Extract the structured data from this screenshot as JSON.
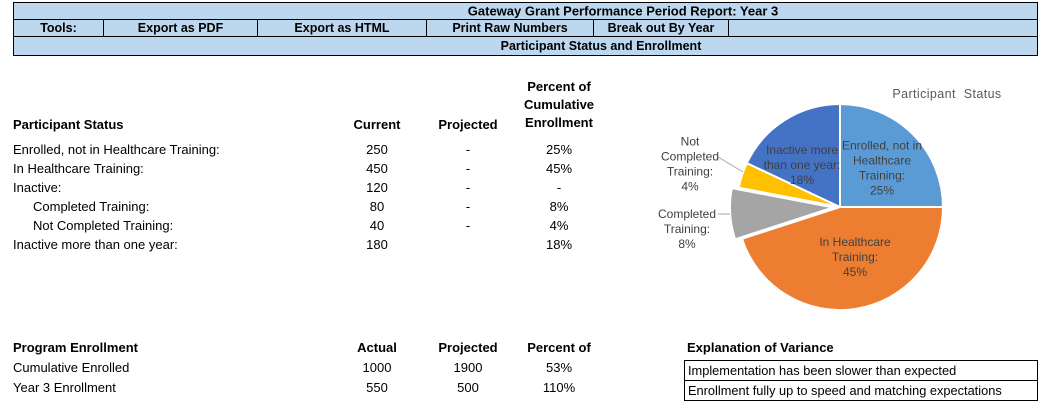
{
  "report_header": {
    "title": "Gateway Grant Performance Period Report: Year 3",
    "tools_label": "Tools:",
    "tool_buttons": [
      "Export as PDF",
      "Export as HTML",
      "Print Raw Numbers",
      "Break out By Year"
    ],
    "section_title": "Participant Status and Enrollment",
    "fill_color": "#BDD7EE",
    "border_color": "#000000"
  },
  "participant_status": {
    "title": "Participant Status",
    "col_current": "Current",
    "col_projected": "Projected",
    "col_percent_lines": [
      "Percent of",
      "Cumulative",
      "Enrollment"
    ],
    "rows": [
      {
        "label": "Enrolled, not in Healthcare Training:",
        "indent": false,
        "current": "250",
        "projected": "-",
        "percent": "25%"
      },
      {
        "label": "In Healthcare Training:",
        "indent": false,
        "current": "450",
        "projected": "-",
        "percent": "45%"
      },
      {
        "label": "Inactive:",
        "indent": false,
        "current": "120",
        "projected": "-",
        "percent": "-"
      },
      {
        "label": "Completed Training:",
        "indent": true,
        "current": "80",
        "projected": "-",
        "percent": "8%"
      },
      {
        "label": "Not Completed Training:",
        "indent": true,
        "current": "40",
        "projected": "-",
        "percent": "4%"
      },
      {
        "label": "Inactive more than one year:",
        "indent": false,
        "current": "180",
        "projected": "",
        "percent": "18%"
      }
    ]
  },
  "program_enrollment": {
    "title": "Program Enrollment",
    "col_actual": "Actual",
    "col_projected": "Projected",
    "col_percent": "Percent of",
    "rows": [
      {
        "label": "Cumulative Enrolled",
        "actual": "1000",
        "projected": "1900",
        "percent": "53%"
      },
      {
        "label": "Year 3 Enrollment",
        "actual": "550",
        "projected": "500",
        "percent": "110%"
      }
    ]
  },
  "variance": {
    "title": "Explanation of Variance",
    "entries": [
      "Implementation has been slower than expected",
      "Enrollment fully up to speed and matching expectations"
    ]
  },
  "chart_data": {
    "type": "pie",
    "title": "Participant Status",
    "start_angle_deg": 0,
    "direction": "clockwise",
    "title_color": "#595959",
    "label_color": "#404040",
    "leader_color": "#A6A6A6",
    "slices": [
      {
        "name": "Enrolled, not in Healthcare Training",
        "value_pct": 25,
        "color": "#5B9BD5",
        "label_lines": [
          "Enrolled, not in",
          "Healthcare",
          "Training:",
          "25%"
        ],
        "label_placement": "inside",
        "exploded": false
      },
      {
        "name": "In Healthcare Training",
        "value_pct": 45,
        "color": "#ED7D31",
        "label_lines": [
          "In Healthcare",
          "Training:",
          "45%"
        ],
        "label_placement": "inside",
        "exploded": false
      },
      {
        "name": "Completed Training",
        "value_pct": 8,
        "color": "#A5A5A5",
        "label_lines": [
          "Completed",
          "Training:",
          "8%"
        ],
        "label_placement": "outside",
        "exploded": true
      },
      {
        "name": "Not Completed Training",
        "value_pct": 4,
        "color": "#FFC000",
        "label_lines": [
          "Not",
          "Completed",
          "Training:",
          "4%"
        ],
        "label_placement": "outside",
        "exploded": false
      },
      {
        "name": "Inactive more than one year",
        "value_pct": 18,
        "color": "#4472C4",
        "label_lines": [
          "Inactive more",
          "than one year:",
          "18%"
        ],
        "label_placement": "inside",
        "exploded": false
      }
    ]
  }
}
